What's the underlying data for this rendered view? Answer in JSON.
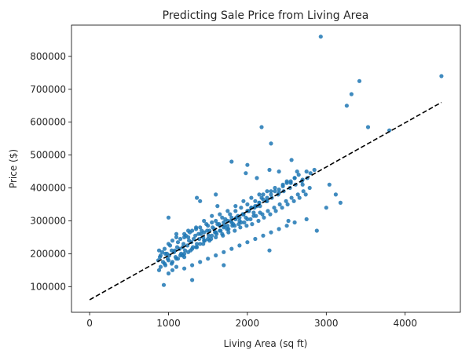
{
  "chart_data": {
    "type": "scatter",
    "title": "Predicting Sale Price from Living Area",
    "xlabel": "Living Area (sq ft)",
    "ylabel": "Price ($)",
    "xlim": [
      -230,
      4700
    ],
    "ylim": [
      22000,
      895000
    ],
    "xticks": [
      0,
      1000,
      2000,
      3000,
      4000
    ],
    "xtick_labels": [
      "0",
      "1000",
      "2000",
      "3000",
      "4000"
    ],
    "yticks": [
      100000,
      200000,
      300000,
      400000,
      500000,
      600000,
      700000,
      800000
    ],
    "ytick_labels": [
      "100000",
      "200000",
      "300000",
      "400000",
      "500000",
      "600000",
      "700000",
      "800000"
    ],
    "grid": false,
    "colors": {
      "points": "#1f77b4",
      "fit_line": "#000000",
      "axes": "#000000"
    },
    "series": [
      {
        "kind": "points",
        "x": [
          880,
          900,
          920,
          950,
          980,
          1000,
          1020,
          1050,
          1080,
          1100,
          1120,
          1150,
          1180,
          1200,
          1220,
          1250,
          1270,
          1300,
          1320,
          1350,
          1380,
          1400,
          1420,
          1450,
          1480,
          1500,
          1520,
          1550,
          1580,
          1600,
          1620,
          1650,
          1680,
          1700,
          1720,
          1750,
          1780,
          1800,
          1820,
          1850,
          1880,
          1900,
          1920,
          1950,
          1980,
          2000,
          2020,
          2050,
          2080,
          2100,
          2120,
          2150,
          2180,
          2200,
          2250,
          2300,
          2350,
          2400,
          2450,
          2500,
          2550,
          2600,
          2650,
          2700,
          2750,
          2800,
          870,
          890,
          930,
          960,
          990,
          1010,
          1040,
          1070,
          1090,
          1110,
          1140,
          1160,
          1190,
          1210,
          1240,
          1260,
          1290,
          1310,
          1340,
          1360,
          1390,
          1410,
          1440,
          1460,
          1490,
          1510,
          1540,
          1560,
          1590,
          1610,
          1640,
          1660,
          1690,
          1710,
          1740,
          1760,
          1790,
          1810,
          1840,
          1860,
          1890,
          1910,
          1940,
          1960,
          1990,
          2010,
          2040,
          2060,
          2090,
          2110,
          2140,
          2160,
          2190,
          2210,
          2240,
          2260,
          2290,
          2310,
          2340,
          2360,
          2390,
          2410,
          2440,
          2460,
          2490,
          2510,
          2540,
          2560,
          2590,
          2610,
          2640,
          2660,
          2690,
          2710,
          2740,
          2760,
          2790,
          900,
          950,
          1000,
          1050,
          1100,
          1150,
          1200,
          1250,
          1300,
          1350,
          1400,
          1450,
          1500,
          1550,
          1600,
          1650,
          1700,
          1750,
          1800,
          1850,
          1900,
          1950,
          2000,
          2050,
          2100,
          2150,
          2200,
          2250,
          2300,
          2350,
          2400,
          2450,
          2500,
          2550,
          2600,
          1000,
          1050,
          1100,
          1200,
          1300,
          1400,
          1500,
          1600,
          1700,
          1800,
          1900,
          2000,
          2100,
          2200,
          2300,
          2400,
          2500,
          2600,
          880,
          960,
          1040,
          1120,
          1200,
          1280,
          1360,
          1440,
          1520,
          1600,
          1680,
          1760,
          1840,
          1920,
          2000,
          2080,
          2160,
          1100,
          1250,
          1350,
          1450,
          1550,
          1650,
          1750,
          1850,
          1950,
          2050,
          2150,
          2250,
          2180,
          2300,
          2280,
          2560,
          2630,
          2880,
          3040,
          3120,
          3180,
          3260,
          3320,
          3420,
          3530,
          3800,
          4460,
          2930,
          1300,
          1700,
          2280,
          2850,
          1000,
          1400,
          1600,
          1200,
          1800,
          2000,
          940,
          1180,
          1360,
          1620,
          1980,
          2120,
          2400,
          2700,
          3000,
          2520,
          2750
        ],
        "y": [
          210000,
          195000,
          205000,
          215000,
          200000,
          230000,
          225000,
          240000,
          210000,
          250000,
          235000,
          245000,
          220000,
          260000,
          255000,
          250000,
          265000,
          270000,
          245000,
          275000,
          260000,
          280000,
          270000,
          265000,
          290000,
          285000,
          270000,
          295000,
          275000,
          300000,
          290000,
          285000,
          310000,
          295000,
          305000,
          300000,
          320000,
          310000,
          290000,
          330000,
          315000,
          300000,
          340000,
          320000,
          310000,
          350000,
          330000,
          340000,
          325000,
          360000,
          345000,
          355000,
          370000,
          380000,
          360000,
          390000,
          400000,
          385000,
          410000,
          420000,
          415000,
          430000,
          440000,
          425000,
          450000,
          445000,
          180000,
          190000,
          175000,
          200000,
          185000,
          195000,
          210000,
          205000,
          190000,
          220000,
          215000,
          200000,
          230000,
          210000,
          225000,
          240000,
          235000,
          220000,
          255000,
          230000,
          245000,
          260000,
          250000,
          240000,
          270000,
          255000,
          245000,
          280000,
          265000,
          260000,
          290000,
          270000,
          255000,
          285000,
          275000,
          265000,
          300000,
          285000,
          270000,
          310000,
          290000,
          280000,
          320000,
          295000,
          285000,
          330000,
          305000,
          290000,
          340000,
          315000,
          300000,
          345000,
          320000,
          310000,
          360000,
          330000,
          320000,
          370000,
          340000,
          330000,
          380000,
          350000,
          340000,
          390000,
          360000,
          350000,
          400000,
          370000,
          360000,
          410000,
          380000,
          370000,
          420000,
          390000,
          380000,
          430000,
          400000,
          160000,
          170000,
          180000,
          175000,
          185000,
          195000,
          190000,
          205000,
          215000,
          220000,
          230000,
          240000,
          245000,
          255000,
          265000,
          270000,
          280000,
          285000,
          295000,
          305000,
          310000,
          320000,
          330000,
          340000,
          345000,
          355000,
          365000,
          370000,
          380000,
          390000,
          395000,
          405000,
          415000,
          420000,
          430000,
          140000,
          150000,
          160000,
          155000,
          165000,
          175000,
          185000,
          195000,
          205000,
          215000,
          225000,
          235000,
          245000,
          255000,
          265000,
          275000,
          285000,
          295000,
          150000,
          165000,
          170000,
          185000,
          200000,
          210000,
          220000,
          230000,
          240000,
          250000,
          260000,
          275000,
          285000,
          295000,
          305000,
          315000,
          325000,
          260000,
          270000,
          280000,
          300000,
          315000,
          320000,
          330000,
          345000,
          360000,
          370000,
          380000,
          390000,
          585000,
          535000,
          210000,
          485000,
          450000,
          270000,
          410000,
          380000,
          355000,
          650000,
          685000,
          725000,
          585000,
          575000,
          740000,
          860000,
          120000,
          165000,
          455000,
          455000,
          310000,
          360000,
          380000,
          250000,
          480000,
          470000,
          105000,
          195000,
          370000,
          345000,
          445000,
          430000,
          450000,
          410000,
          340000,
          300000,
          305000
        ]
      },
      {
        "kind": "line",
        "x": [
          0,
          4460
        ],
        "y": [
          60000,
          660000
        ]
      }
    ]
  }
}
